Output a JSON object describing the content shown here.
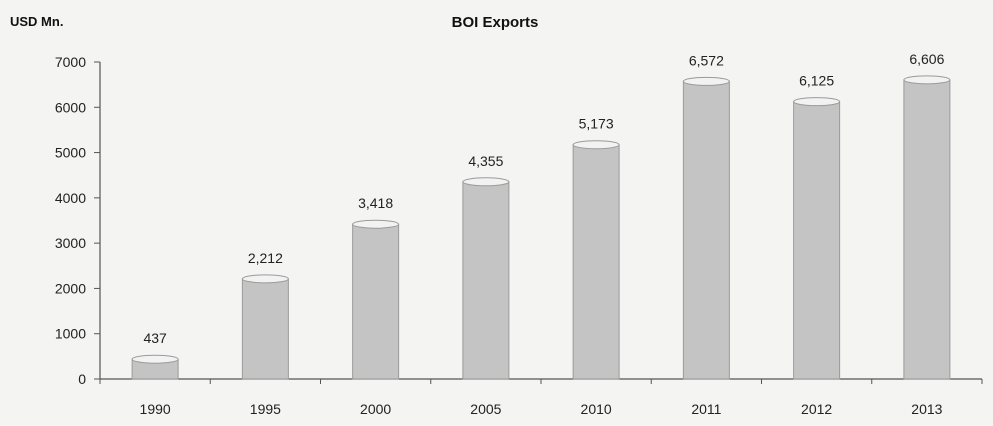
{
  "chart_data": {
    "type": "bar",
    "title": "BOI Exports",
    "ylabel": "USD Mn.",
    "xlabel": "",
    "categories": [
      "1990",
      "1995",
      "2000",
      "2005",
      "2010",
      "2011",
      "2012",
      "2013"
    ],
    "values": [
      437,
      2212,
      3418,
      4355,
      5173,
      6572,
      6125,
      6606
    ],
    "data_labels": [
      "437",
      "2,212",
      "3,418",
      "4,355",
      "5,173",
      "6,572",
      "6,125",
      "6,606"
    ],
    "ylim": [
      0,
      7000
    ],
    "yticks": [
      0,
      1000,
      2000,
      3000,
      4000,
      5000,
      6000,
      7000
    ],
    "grid": false,
    "legend": "none",
    "colors": {
      "bar": "#c4c4c4",
      "bar_edge": "#9a9a9a",
      "bar_top": "#f2f2f2",
      "axis": "#555555"
    }
  }
}
